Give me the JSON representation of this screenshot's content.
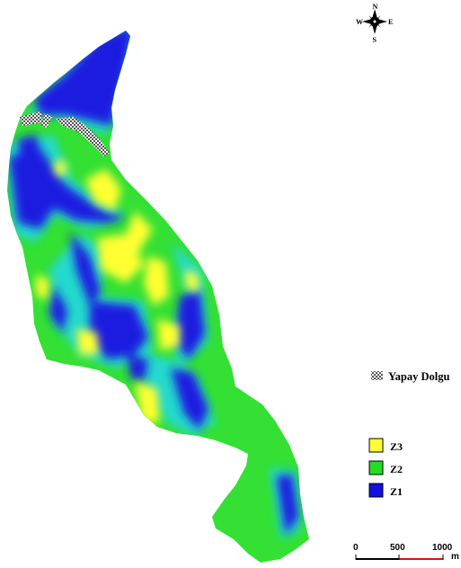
{
  "compass": {
    "north": "N",
    "south": "S",
    "east": "E",
    "west": "W",
    "icon": "compass-rose-icon"
  },
  "legend": {
    "fill_label": "Yapay Dolgu",
    "zones": [
      {
        "label": "Z3",
        "color": "#ffff33"
      },
      {
        "label": "Z2",
        "color": "#22dd22"
      },
      {
        "label": "Z1",
        "color": "#1111dd"
      }
    ]
  },
  "scale_bar": {
    "ticks": [
      "0",
      "500",
      "1000"
    ],
    "unit": "m",
    "colors": [
      "#000000",
      "#dd1111"
    ]
  },
  "colors": {
    "z1": "#1a1ae0",
    "z2": "#33e033",
    "z3": "#ffff33",
    "transition": "#22d8e8",
    "fill_hatch": "#555555"
  }
}
